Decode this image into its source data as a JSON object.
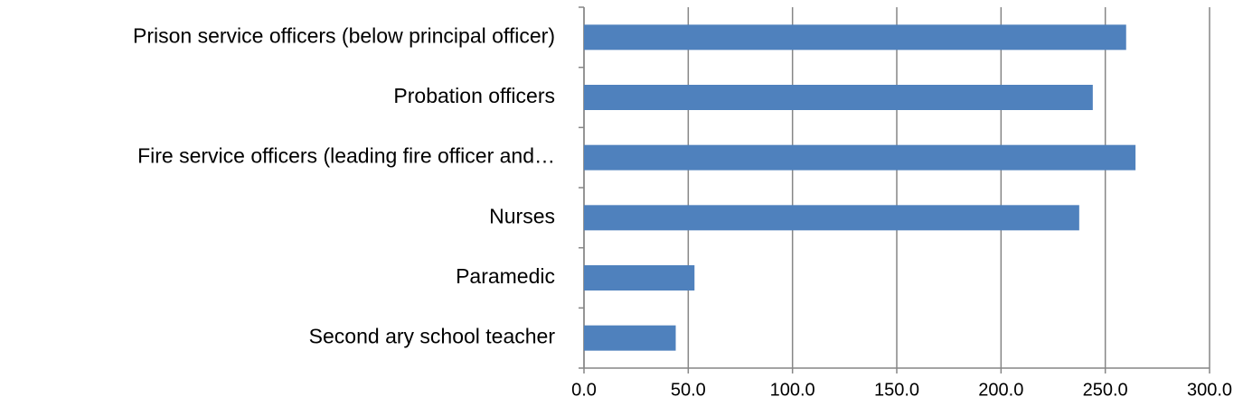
{
  "chart_data": {
    "type": "barh",
    "categories": [
      "Prison service officers (below principal officer)",
      "Probation officers",
      "Fire service officers (leading fire officer and…",
      "Nurses",
      "Paramedic",
      "Second ary school teacher"
    ],
    "values": [
      260,
      244,
      264.5,
      237.5,
      53,
      44
    ],
    "color": "#4f81bd",
    "xlim": [
      0,
      300
    ],
    "xticks": [
      {
        "value": 0,
        "label": "0.0"
      },
      {
        "value": 50,
        "label": "50.0"
      },
      {
        "value": 100,
        "label": "100.0"
      },
      {
        "value": 150,
        "label": "150.0"
      },
      {
        "value": 200,
        "label": "200.0"
      },
      {
        "value": 250,
        "label": "250.0"
      },
      {
        "value": 300,
        "label": "300.0"
      }
    ],
    "grid": true
  }
}
